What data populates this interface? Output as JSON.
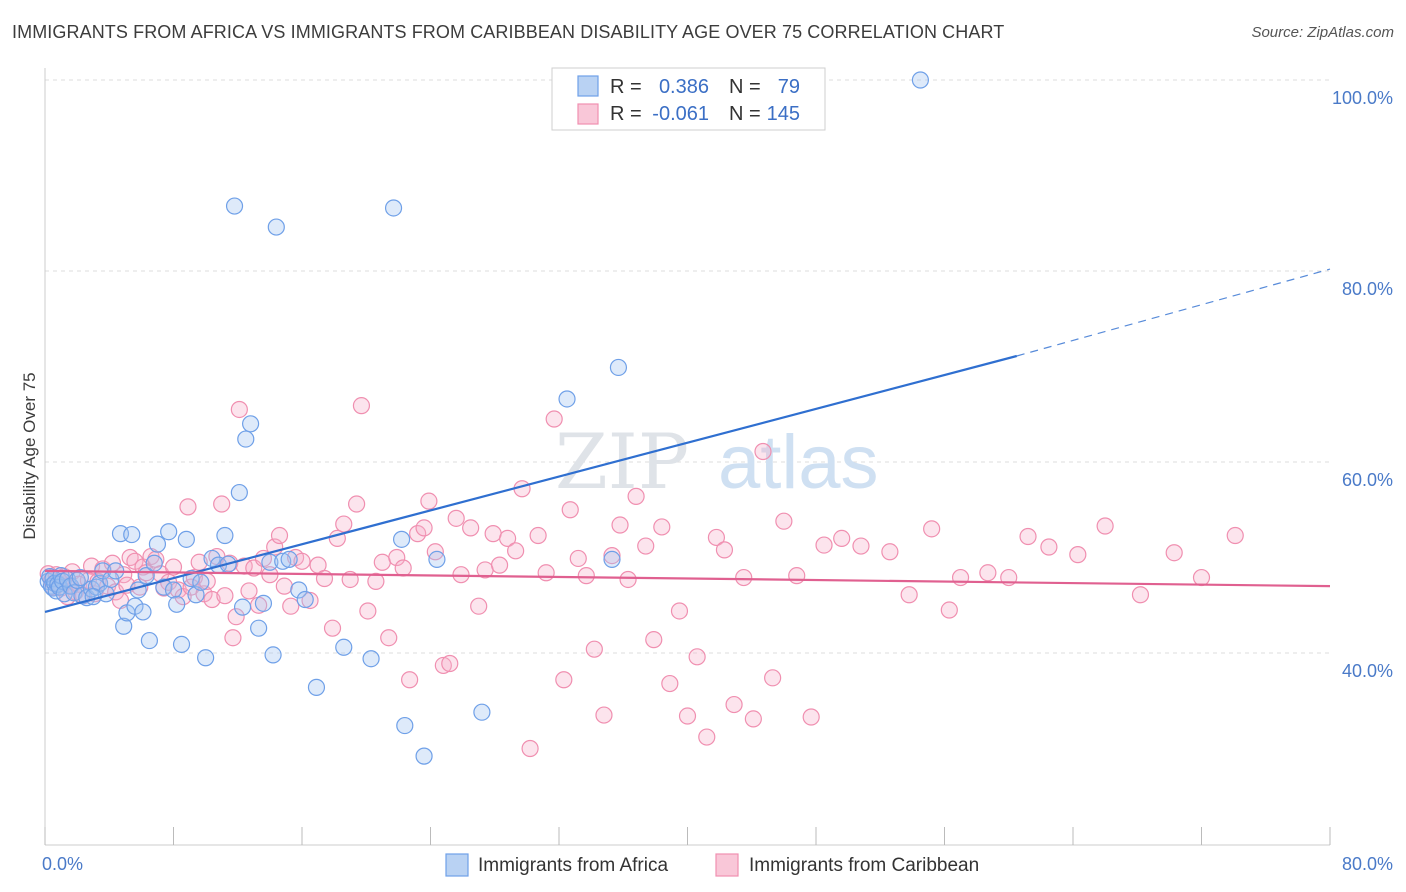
{
  "title": "IMMIGRANTS FROM AFRICA VS IMMIGRANTS FROM CARIBBEAN DISABILITY AGE OVER 75 CORRELATION CHART",
  "source": "Source: ZipAtlas.com",
  "watermark": {
    "zip": "ZIP",
    "atlas": "atlas"
  },
  "legend_top": [
    {
      "r_label": "R =",
      "r_value": "0.386",
      "n_label": "N =",
      "n_value": "79"
    },
    {
      "r_label": "R =",
      "r_value": "-0.061",
      "n_label": "N =",
      "n_value": "145"
    }
  ],
  "chart_data": {
    "type": "scatter",
    "title": "IMMIGRANTS FROM AFRICA VS IMMIGRANTS FROM CARIBBEAN DISABILITY AGE OVER 75 CORRELATION CHART",
    "xlabel": "",
    "ylabel": "Disability Age Over 75",
    "xlim": [
      0,
      80
    ],
    "ylim": [
      20,
      101
    ],
    "x_tick_labels": [
      "0.0%",
      "80.0%"
    ],
    "y_ticks": [
      40,
      60,
      80,
      100
    ],
    "y_tick_labels": [
      "40.0%",
      "60.0%",
      "80.0%",
      "100.0%"
    ],
    "grid": true,
    "legend_position": "bottom",
    "colors": {
      "africa": "#6fa0e8",
      "caribbean": "#f08fb0",
      "africa_line": "#2f6fd0",
      "caribbean_line": "#e06090"
    },
    "series": [
      {
        "name": "Immigrants from Africa",
        "r": 0.386,
        "n": 79,
        "trend": {
          "x0": 0,
          "y0": 44.3,
          "x1": 60.5,
          "y1": 71.1,
          "dash_to_x": 80,
          "dash_to_y": 80.2
        },
        "points": [
          [
            0.2,
            47.5
          ],
          [
            0.3,
            48.0
          ],
          [
            0.4,
            47.0
          ],
          [
            0.5,
            46.8
          ],
          [
            0.5,
            47.8
          ],
          [
            0.6,
            47.3
          ],
          [
            0.7,
            46.5
          ],
          [
            0.8,
            47.2
          ],
          [
            0.9,
            46.9
          ],
          [
            1.0,
            48.1
          ],
          [
            1.1,
            47.5
          ],
          [
            1.2,
            46.2
          ],
          [
            1.4,
            47.7
          ],
          [
            1.6,
            47.0
          ],
          [
            1.8,
            46.3
          ],
          [
            2.0,
            47.6
          ],
          [
            2.3,
            46.0
          ],
          [
            2.6,
            45.8
          ],
          [
            2.9,
            46.7
          ],
          [
            3.2,
            46.9
          ],
          [
            3.4,
            47.3
          ],
          [
            3.6,
            48.6
          ],
          [
            3.8,
            46.2
          ],
          [
            4.1,
            47.7
          ],
          [
            4.4,
            48.6
          ],
          [
            4.7,
            52.5
          ],
          [
            4.9,
            42.8
          ],
          [
            5.1,
            44.2
          ],
          [
            5.4,
            52.4
          ],
          [
            5.6,
            44.9
          ],
          [
            5.8,
            46.6
          ],
          [
            6.1,
            44.3
          ],
          [
            6.3,
            48.1
          ],
          [
            6.5,
            41.3
          ],
          [
            6.8,
            49.4
          ],
          [
            7.0,
            51.4
          ],
          [
            7.4,
            46.9
          ],
          [
            7.7,
            52.7
          ],
          [
            8.0,
            46.6
          ],
          [
            8.2,
            45.1
          ],
          [
            8.5,
            40.9
          ],
          [
            8.8,
            51.9
          ],
          [
            9.1,
            47.8
          ],
          [
            9.4,
            46.1
          ],
          [
            9.7,
            47.4
          ],
          [
            10.0,
            39.5
          ],
          [
            10.4,
            49.9
          ],
          [
            10.8,
            49.2
          ],
          [
            11.2,
            52.3
          ],
          [
            11.4,
            49.3
          ],
          [
            11.8,
            86.8
          ],
          [
            12.1,
            56.8
          ],
          [
            12.3,
            44.8
          ],
          [
            12.5,
            62.4
          ],
          [
            12.8,
            64.0
          ],
          [
            13.3,
            42.6
          ],
          [
            13.6,
            45.2
          ],
          [
            14.0,
            49.5
          ],
          [
            14.2,
            39.8
          ],
          [
            14.4,
            84.6
          ],
          [
            14.8,
            49.6
          ],
          [
            15.2,
            49.8
          ],
          [
            15.8,
            46.6
          ],
          [
            16.2,
            45.6
          ],
          [
            16.9,
            36.4
          ],
          [
            18.6,
            40.6
          ],
          [
            20.3,
            39.4
          ],
          [
            21.7,
            86.6
          ],
          [
            22.2,
            51.9
          ],
          [
            22.4,
            32.4
          ],
          [
            23.6,
            29.2
          ],
          [
            24.4,
            49.8
          ],
          [
            27.2,
            33.8
          ],
          [
            32.5,
            66.6
          ],
          [
            35.3,
            49.8
          ],
          [
            35.7,
            69.9
          ],
          [
            54.5,
            100.0
          ],
          [
            2.2,
            47.9
          ],
          [
            3.0,
            45.9
          ]
        ]
      },
      {
        "name": "Immigrants from Caribbean",
        "r": -0.061,
        "n": 145,
        "trend": {
          "x0": 0,
          "y0": 48.6,
          "x1": 80,
          "y1": 47.0
        },
        "points": [
          [
            0.2,
            48.3
          ],
          [
            0.4,
            47.6
          ],
          [
            0.5,
            46.9
          ],
          [
            0.7,
            48.2
          ],
          [
            0.8,
            47.3
          ],
          [
            1.0,
            46.8
          ],
          [
            1.2,
            48.0
          ],
          [
            1.4,
            45.9
          ],
          [
            1.5,
            47.1
          ],
          [
            1.7,
            48.5
          ],
          [
            1.9,
            46.4
          ],
          [
            2.1,
            47.2
          ],
          [
            2.4,
            46.0
          ],
          [
            2.7,
            47.6
          ],
          [
            2.9,
            49.1
          ],
          [
            3.1,
            46.2
          ],
          [
            3.3,
            47.5
          ],
          [
            3.6,
            48.8
          ],
          [
            3.9,
            47.0
          ],
          [
            4.2,
            49.4
          ],
          [
            4.4,
            46.4
          ],
          [
            4.7,
            45.5
          ],
          [
            4.9,
            48.2
          ],
          [
            5.1,
            47.1
          ],
          [
            5.3,
            50.0
          ],
          [
            5.6,
            49.6
          ],
          [
            5.9,
            46.9
          ],
          [
            6.1,
            49.0
          ],
          [
            6.3,
            48.4
          ],
          [
            6.6,
            50.1
          ],
          [
            6.9,
            49.8
          ],
          [
            7.2,
            48.3
          ],
          [
            7.4,
            46.8
          ],
          [
            7.7,
            47.4
          ],
          [
            8.0,
            49.0
          ],
          [
            8.3,
            46.6
          ],
          [
            8.6,
            45.9
          ],
          [
            8.9,
            55.3
          ],
          [
            9.1,
            46.9
          ],
          [
            9.3,
            47.9
          ],
          [
            9.6,
            49.5
          ],
          [
            9.9,
            46.2
          ],
          [
            10.1,
            47.5
          ],
          [
            10.4,
            45.6
          ],
          [
            10.7,
            50.1
          ],
          [
            11.0,
            55.6
          ],
          [
            11.2,
            46.0
          ],
          [
            11.5,
            49.4
          ],
          [
            11.7,
            41.6
          ],
          [
            11.9,
            43.8
          ],
          [
            12.1,
            65.5
          ],
          [
            12.4,
            49.1
          ],
          [
            12.7,
            46.5
          ],
          [
            13.0,
            48.9
          ],
          [
            13.3,
            45.0
          ],
          [
            13.6,
            49.9
          ],
          [
            14.0,
            48.2
          ],
          [
            14.3,
            51.1
          ],
          [
            14.6,
            52.3
          ],
          [
            14.9,
            47.0
          ],
          [
            15.3,
            44.9
          ],
          [
            15.6,
            50.0
          ],
          [
            16.0,
            49.6
          ],
          [
            16.5,
            45.5
          ],
          [
            17.0,
            49.2
          ],
          [
            17.4,
            47.8
          ],
          [
            17.9,
            42.6
          ],
          [
            18.2,
            52.0
          ],
          [
            18.6,
            53.5
          ],
          [
            19.0,
            47.7
          ],
          [
            19.4,
            55.6
          ],
          [
            19.7,
            65.9
          ],
          [
            20.1,
            44.4
          ],
          [
            20.6,
            47.5
          ],
          [
            21.0,
            49.5
          ],
          [
            21.4,
            41.6
          ],
          [
            21.9,
            50.0
          ],
          [
            22.3,
            48.9
          ],
          [
            22.7,
            37.2
          ],
          [
            23.2,
            52.5
          ],
          [
            23.6,
            53.1
          ],
          [
            23.9,
            55.9
          ],
          [
            24.3,
            50.6
          ],
          [
            24.8,
            38.7
          ],
          [
            25.2,
            38.9
          ],
          [
            25.6,
            54.1
          ],
          [
            25.9,
            48.2
          ],
          [
            26.5,
            53.1
          ],
          [
            27.0,
            44.9
          ],
          [
            27.4,
            48.7
          ],
          [
            27.9,
            52.5
          ],
          [
            28.3,
            49.2
          ],
          [
            28.8,
            52.0
          ],
          [
            29.3,
            50.7
          ],
          [
            29.7,
            57.2
          ],
          [
            30.2,
            30.0
          ],
          [
            30.7,
            52.3
          ],
          [
            31.2,
            48.4
          ],
          [
            31.7,
            64.5
          ],
          [
            32.3,
            37.2
          ],
          [
            32.7,
            55.0
          ],
          [
            33.2,
            49.9
          ],
          [
            33.7,
            48.1
          ],
          [
            34.2,
            40.4
          ],
          [
            34.8,
            33.5
          ],
          [
            35.3,
            50.2
          ],
          [
            35.8,
            53.4
          ],
          [
            36.3,
            47.7
          ],
          [
            36.8,
            56.4
          ],
          [
            37.4,
            51.2
          ],
          [
            37.9,
            41.4
          ],
          [
            38.4,
            53.2
          ],
          [
            38.9,
            36.8
          ],
          [
            39.5,
            44.4
          ],
          [
            40.0,
            33.4
          ],
          [
            40.6,
            39.6
          ],
          [
            41.2,
            31.2
          ],
          [
            41.8,
            52.1
          ],
          [
            42.3,
            50.8
          ],
          [
            42.9,
            34.6
          ],
          [
            43.5,
            47.9
          ],
          [
            44.1,
            33.1
          ],
          [
            44.7,
            61.1
          ],
          [
            45.3,
            37.4
          ],
          [
            46.0,
            53.8
          ],
          [
            46.8,
            48.1
          ],
          [
            47.7,
            33.3
          ],
          [
            48.5,
            51.3
          ],
          [
            49.6,
            52.0
          ],
          [
            50.8,
            51.2
          ],
          [
            52.6,
            50.6
          ],
          [
            53.8,
            46.1
          ],
          [
            55.2,
            53.0
          ],
          [
            56.3,
            44.5
          ],
          [
            57.0,
            47.9
          ],
          [
            58.7,
            48.4
          ],
          [
            60.0,
            47.9
          ],
          [
            61.2,
            52.2
          ],
          [
            62.5,
            51.1
          ],
          [
            64.3,
            50.3
          ],
          [
            66.0,
            53.3
          ],
          [
            68.2,
            46.1
          ],
          [
            70.3,
            50.5
          ],
          [
            72.0,
            47.9
          ],
          [
            74.1,
            52.3
          ]
        ]
      }
    ]
  },
  "bottom_legend": [
    "Immigrants from Africa",
    "Immigrants from Caribbean"
  ]
}
